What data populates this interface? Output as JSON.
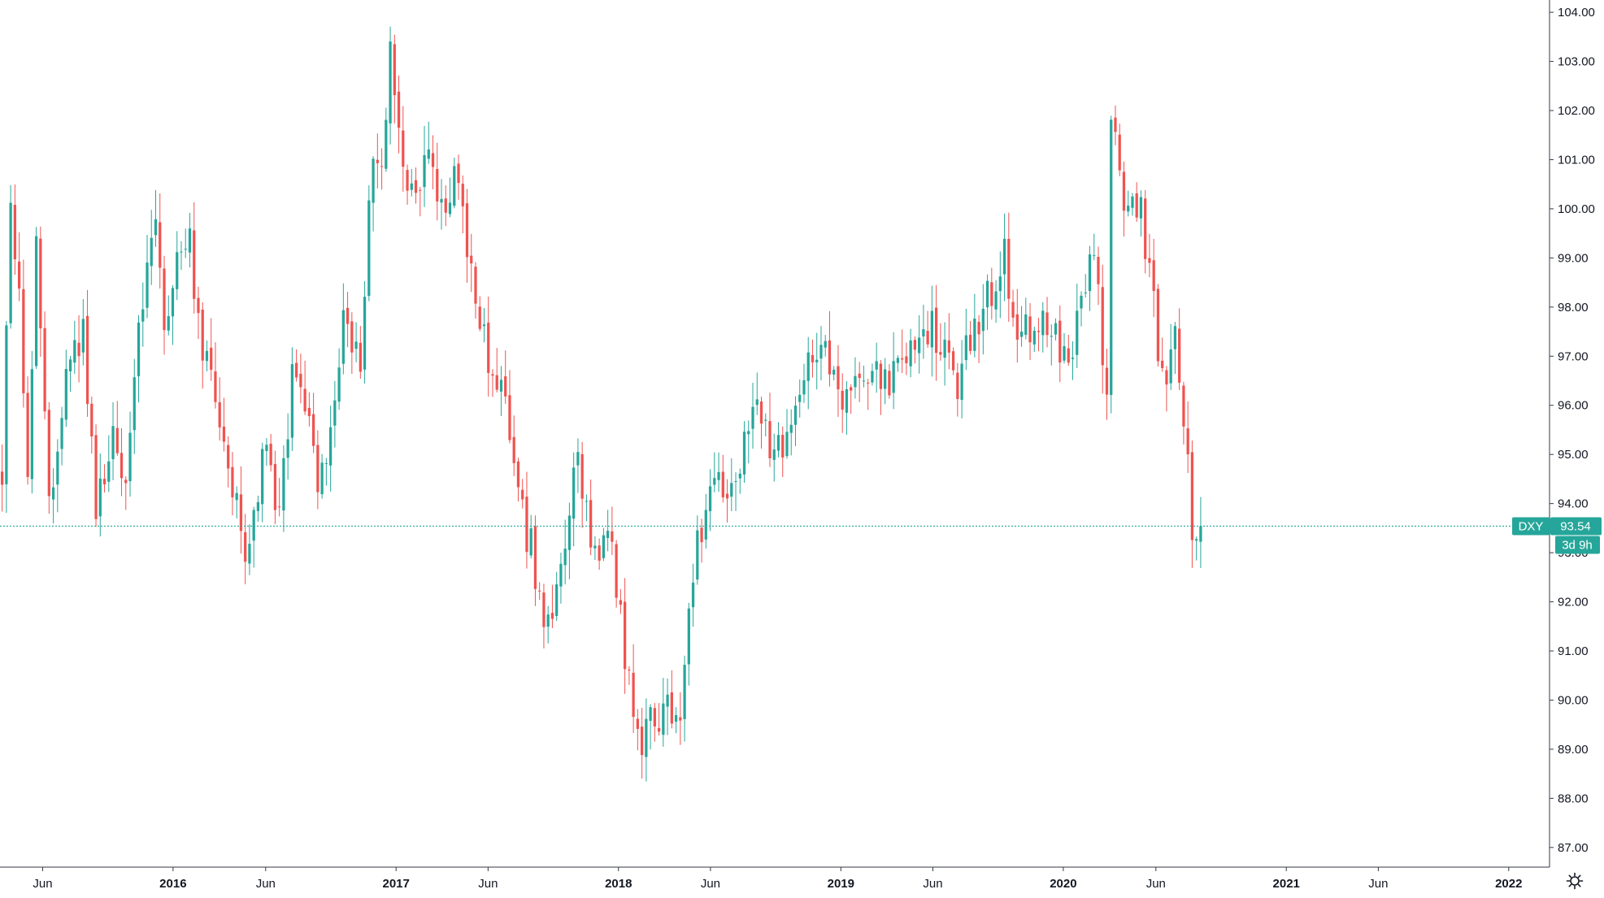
{
  "chart_data": {
    "type": "candlestick",
    "symbol": "DXY",
    "last_price": "93.54",
    "countdown": "3d 9h",
    "colors": {
      "up": "#26a69a",
      "down": "#ef5350",
      "last_line": "#26a69a",
      "tag_bg": "#26a69a"
    },
    "price_axis": {
      "range": [
        86.6,
        104.25
      ],
      "ticks": [
        "87.00",
        "88.00",
        "89.00",
        "90.00",
        "91.00",
        "92.00",
        "93.00",
        "94.00",
        "95.00",
        "96.00",
        "97.00",
        "98.00",
        "99.00",
        "100.00",
        "101.00",
        "102.00",
        "103.00",
        "104.00"
      ]
    },
    "time_axis": {
      "range": [
        "2015-03-23",
        "2022-03-09"
      ],
      "ticks": [
        {
          "date": "2015-06-01",
          "label": "Jun",
          "bold": false
        },
        {
          "date": "2016-01-01",
          "label": "2016",
          "bold": true
        },
        {
          "date": "2016-06-01",
          "label": "Jun",
          "bold": false
        },
        {
          "date": "2017-01-01",
          "label": "2017",
          "bold": true
        },
        {
          "date": "2017-06-01",
          "label": "Jun",
          "bold": false
        },
        {
          "date": "2018-01-01",
          "label": "2018",
          "bold": true
        },
        {
          "date": "2018-06-01",
          "label": "Jun",
          "bold": false
        },
        {
          "date": "2019-01-01",
          "label": "2019",
          "bold": true
        },
        {
          "date": "2019-06-01",
          "label": "Jun",
          "bold": false
        },
        {
          "date": "2020-01-01",
          "label": "2020",
          "bold": true
        },
        {
          "date": "2020-06-01",
          "label": "Jun",
          "bold": false
        },
        {
          "date": "2021-01-01",
          "label": "2021",
          "bold": true
        },
        {
          "date": "2021-06-01",
          "label": "Jun",
          "bold": false
        },
        {
          "date": "2022-01-01",
          "label": "2022",
          "bold": true
        }
      ]
    },
    "anchors": [
      [
        "2015-03-23",
        94.2
      ],
      [
        "2015-04-06",
        100.3
      ],
      [
        "2015-04-20",
        98.0
      ],
      [
        "2015-05-04",
        94.8
      ],
      [
        "2015-05-18",
        99.0
      ],
      [
        "2015-06-08",
        94.0
      ],
      [
        "2015-06-29",
        96.0
      ],
      [
        "2015-07-13",
        96.6
      ],
      [
        "2015-08-03",
        97.6
      ],
      [
        "2015-08-24",
        93.6
      ],
      [
        "2015-09-21",
        95.8
      ],
      [
        "2015-10-12",
        94.0
      ],
      [
        "2015-11-02",
        97.6
      ],
      [
        "2015-11-30",
        99.8
      ],
      [
        "2015-12-14",
        97.6
      ],
      [
        "2016-01-04",
        99.0
      ],
      [
        "2016-01-25",
        99.4
      ],
      [
        "2016-02-15",
        97.0
      ],
      [
        "2016-03-07",
        96.2
      ],
      [
        "2016-03-28",
        94.6
      ],
      [
        "2016-05-02",
        92.8
      ],
      [
        "2016-05-23",
        95.3
      ],
      [
        "2016-06-20",
        93.7
      ],
      [
        "2016-07-11",
        96.6
      ],
      [
        "2016-08-01",
        96.0
      ],
      [
        "2016-08-22",
        94.6
      ],
      [
        "2016-09-12",
        95.6
      ],
      [
        "2016-10-03",
        97.5
      ],
      [
        "2016-10-31",
        97.0
      ],
      [
        "2016-11-21",
        101.4
      ],
      [
        "2016-12-05",
        101.2
      ],
      [
        "2016-12-19",
        103.1
      ],
      [
        "2017-01-02",
        101.3
      ],
      [
        "2017-01-16",
        100.2
      ],
      [
        "2017-02-06",
        100.8
      ],
      [
        "2017-02-27",
        101.2
      ],
      [
        "2017-03-13",
        99.9
      ],
      [
        "2017-04-03",
        100.8
      ],
      [
        "2017-04-24",
        99.1
      ],
      [
        "2017-05-15",
        97.4
      ],
      [
        "2017-06-05",
        96.9
      ],
      [
        "2017-06-26",
        96.0
      ],
      [
        "2017-07-17",
        94.0
      ],
      [
        "2017-08-07",
        93.1
      ],
      [
        "2017-09-04",
        91.3
      ],
      [
        "2017-09-25",
        93.1
      ],
      [
        "2017-10-23",
        94.8
      ],
      [
        "2017-11-20",
        93.0
      ],
      [
        "2017-12-11",
        93.6
      ],
      [
        "2018-01-08",
        90.9
      ],
      [
        "2018-01-29",
        89.0
      ],
      [
        "2018-02-19",
        89.9
      ],
      [
        "2018-03-12",
        89.7
      ],
      [
        "2018-04-09",
        89.8
      ],
      [
        "2018-04-30",
        92.6
      ],
      [
        "2018-05-21",
        94.1
      ],
      [
        "2018-06-11",
        94.5
      ],
      [
        "2018-07-02",
        94.2
      ],
      [
        "2018-08-13",
        96.2
      ],
      [
        "2018-09-03",
        95.0
      ],
      [
        "2018-09-24",
        95.3
      ],
      [
        "2018-10-15",
        95.8
      ],
      [
        "2018-11-12",
        97.2
      ],
      [
        "2018-12-10",
        96.8
      ],
      [
        "2019-01-07",
        96.0
      ],
      [
        "2019-01-28",
        96.3
      ],
      [
        "2019-02-25",
        96.5
      ],
      [
        "2019-03-18",
        96.6
      ],
      [
        "2019-04-15",
        97.2
      ],
      [
        "2019-05-13",
        97.8
      ],
      [
        "2019-06-10",
        97.3
      ],
      [
        "2019-07-08",
        96.4
      ],
      [
        "2019-07-29",
        97.5
      ],
      [
        "2019-08-19",
        98.0
      ],
      [
        "2019-09-23",
        99.0
      ],
      [
        "2019-10-14",
        97.7
      ],
      [
        "2019-11-11",
        97.6
      ],
      [
        "2019-12-09",
        97.6
      ],
      [
        "2019-12-30",
        96.8
      ],
      [
        "2020-01-27",
        97.8
      ],
      [
        "2020-02-17",
        99.3
      ],
      [
        "2020-03-09",
        96.0
      ],
      [
        "2020-03-16",
        102.0
      ],
      [
        "2020-03-30",
        100.4
      ],
      [
        "2020-04-13",
        100.0
      ],
      [
        "2020-05-04",
        99.8
      ],
      [
        "2020-05-25",
        98.0
      ],
      [
        "2020-06-08",
        96.6
      ],
      [
        "2020-06-29",
        97.4
      ],
      [
        "2020-07-13",
        96.0
      ],
      [
        "2020-07-27",
        93.5
      ],
      [
        "2020-08-10",
        93.54
      ]
    ],
    "weekly_start": "2015-03-23",
    "weekly_end": "2020-08-10"
  }
}
